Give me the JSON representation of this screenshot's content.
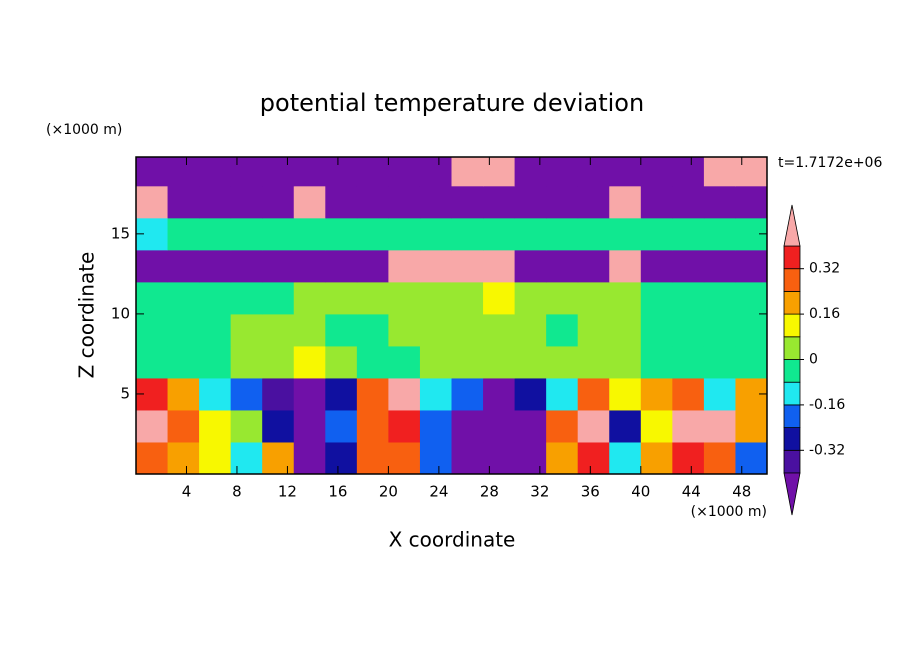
{
  "chart_data": {
    "type": "contour",
    "title": "potential temperature deviation",
    "x_label": "X coordinate",
    "y_label": "Z coordinate",
    "x_unit": "(×1000 m)",
    "y_unit": "(×1000 m)",
    "annotation": "t=1.7172e+06",
    "xlim": [
      0,
      50
    ],
    "ylim": [
      0,
      19.8
    ],
    "xticks": [
      4,
      8,
      12,
      16,
      20,
      24,
      28,
      32,
      36,
      40,
      44,
      48
    ],
    "yticks": [
      5,
      10,
      15
    ],
    "x": [
      1.25,
      3.75,
      6.25,
      8.75,
      11.25,
      13.75,
      16.25,
      18.75,
      21.25,
      23.75,
      26.25,
      28.75,
      31.25,
      33.75,
      36.25,
      38.75,
      41.25,
      43.75,
      46.25,
      48.75
    ],
    "y": [
      1,
      3,
      5,
      7,
      9,
      11,
      13,
      15,
      17,
      19
    ],
    "z": [
      [
        0.3,
        0.2,
        0.1,
        -0.1,
        0.2,
        -0.45,
        -0.3,
        0.25,
        0.3,
        -0.2,
        -0.45,
        -0.5,
        -0.45,
        0.2,
        0.35,
        -0.1,
        0.2,
        0.35,
        0.3,
        -0.2
      ],
      [
        0.45,
        0.3,
        0.15,
        0.05,
        -0.3,
        -0.5,
        -0.2,
        0.3,
        0.35,
        -0.2,
        -0.5,
        -0.5,
        -0.45,
        0.25,
        0.4,
        -0.3,
        0.1,
        0.4,
        0.45,
        0.2
      ],
      [
        0.35,
        0.2,
        -0.1,
        -0.2,
        -0.35,
        -0.5,
        -0.3,
        0.25,
        0.45,
        -0.1,
        -0.2,
        -0.45,
        -0.3,
        -0.1,
        0.3,
        0.1,
        0.2,
        0.25,
        -0.1,
        0.2
      ],
      [
        -0.05,
        -0.05,
        -0.05,
        0.04,
        0.04,
        0.12,
        0.04,
        -0.05,
        -0.05,
        0.04,
        0.04,
        0.04,
        0.04,
        0.04,
        0.04,
        0.04,
        -0.05,
        -0.05,
        -0.05,
        -0.05
      ],
      [
        -0.05,
        -0.05,
        -0.05,
        0.04,
        0.04,
        0.04,
        -0.05,
        -0.05,
        0.04,
        0.04,
        0.04,
        0.04,
        0.04,
        -0.05,
        0.04,
        0.04,
        -0.05,
        -0.05,
        -0.05,
        -0.05
      ],
      [
        -0.05,
        -0.05,
        -0.05,
        -0.05,
        -0.05,
        0.04,
        0.04,
        0.04,
        0.04,
        0.04,
        0.04,
        0.12,
        0.04,
        0.04,
        0.04,
        0.04,
        -0.05,
        -0.05,
        -0.05,
        -0.05
      ],
      [
        -0.45,
        -0.45,
        -0.45,
        -0.45,
        -0.45,
        -0.45,
        -0.45,
        -0.45,
        0.5,
        0.5,
        0.5,
        0.5,
        -0.45,
        -0.45,
        -0.45,
        0.5,
        -0.45,
        -0.45,
        -0.45,
        -0.45
      ],
      [
        -0.1,
        -0.05,
        -0.05,
        -0.05,
        -0.05,
        -0.05,
        -0.05,
        -0.05,
        -0.05,
        -0.05,
        -0.05,
        -0.05,
        -0.05,
        -0.05,
        -0.05,
        -0.05,
        -0.05,
        -0.05,
        -0.05,
        -0.05
      ],
      [
        0.5,
        -0.5,
        -0.5,
        -0.5,
        -0.5,
        0.5,
        -0.5,
        -0.5,
        -0.5,
        -0.5,
        -0.5,
        -0.5,
        -0.5,
        -0.5,
        -0.5,
        0.5,
        -0.5,
        -0.5,
        -0.5,
        -0.5
      ],
      [
        -0.5,
        -0.5,
        -0.5,
        -0.5,
        -0.5,
        -0.5,
        -0.5,
        -0.5,
        -0.5,
        -0.5,
        0.5,
        0.5,
        -0.5,
        -0.5,
        -0.5,
        -0.5,
        -0.5,
        -0.5,
        0.5,
        0.5
      ]
    ],
    "levels": [
      -0.4,
      -0.32,
      -0.24,
      -0.16,
      -0.08,
      0,
      0.08,
      0.16,
      0.24,
      0.32,
      0.4
    ],
    "colors": [
      "#7010a8",
      "#4a10a0",
      "#1010a0",
      "#1060f0",
      "#20e8f0",
      "#10e890",
      "#98e830",
      "#f8f800",
      "#f8a000",
      "#f86010",
      "#f02020",
      "#f8a8a8"
    ],
    "colorbar_ticks": [
      0.32,
      0.16,
      0,
      -0.16,
      -0.32
    ]
  }
}
